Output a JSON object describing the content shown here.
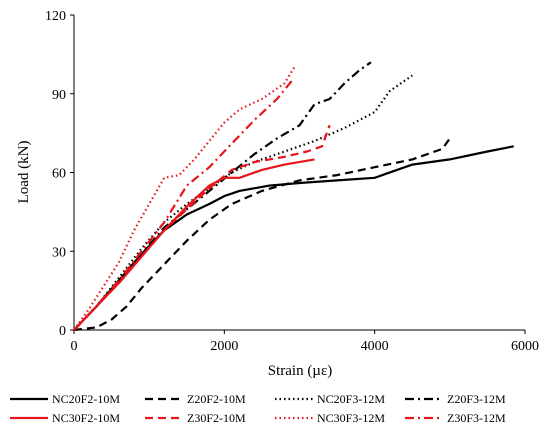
{
  "chart_data": {
    "type": "line",
    "title": "",
    "xlabel": "Strain (µε)",
    "ylabel": "Load (kN)",
    "xlim": [
      0,
      6000
    ],
    "ylim": [
      0,
      120
    ],
    "x_ticks": [
      0,
      2000,
      4000,
      6000
    ],
    "y_ticks": [
      0,
      30,
      60,
      90,
      120
    ],
    "grid": false,
    "legend_position": "bottom",
    "series": [
      {
        "name": "NC20F2-10M",
        "color": "#000000",
        "dash": "solid",
        "x": [
          0,
          300,
          600,
          900,
          1200,
          1500,
          1800,
          2000,
          2200,
          2600,
          3000,
          3500,
          4000,
          4500,
          5000,
          5500,
          5850
        ],
        "y": [
          0,
          9,
          19,
          29,
          38,
          44,
          48,
          51,
          53,
          55,
          56,
          57,
          58,
          63,
          65,
          68,
          70
        ]
      },
      {
        "name": "Z20F2-10M",
        "color": "#000000",
        "dash": "dashed",
        "x": [
          0,
          300,
          500,
          700,
          900,
          1200,
          1500,
          1800,
          2100,
          2500,
          3000,
          3500,
          4000,
          4500,
          4900,
          5000
        ],
        "y": [
          0,
          1,
          4,
          9,
          16,
          25,
          34,
          42,
          48,
          53,
          57,
          59,
          62,
          65,
          69,
          73
        ]
      },
      {
        "name": "NC20F3-12M",
        "color": "#000000",
        "dash": "dotted",
        "x": [
          0,
          300,
          600,
          900,
          1200,
          1500,
          1800,
          2100,
          2400,
          2800,
          3200,
          3600,
          4000,
          4200,
          4500
        ],
        "y": [
          0,
          9,
          20,
          31,
          41,
          48,
          54,
          60,
          64,
          68,
          72,
          77,
          83,
          91,
          97
        ]
      },
      {
        "name": "Z20F3-12M",
        "color": "#000000",
        "dash": "dashdot",
        "x": [
          0,
          300,
          600,
          900,
          1200,
          1500,
          1800,
          2100,
          2400,
          2700,
          3000,
          3200,
          3400,
          3600,
          3800,
          3950
        ],
        "y": [
          0,
          9,
          19,
          29,
          39,
          46,
          53,
          60,
          67,
          73,
          78,
          86,
          88,
          94,
          99,
          102
        ]
      },
      {
        "name": "NC30F2-10M",
        "color": "#e8141b",
        "dash": "solid",
        "x": [
          0,
          300,
          600,
          900,
          1200,
          1500,
          1800,
          2000,
          2200,
          2500,
          2800,
          3200
        ],
        "y": [
          0,
          9,
          18,
          28,
          38,
          47,
          55,
          58,
          58,
          61,
          63,
          65
        ]
      },
      {
        "name": "Z30F2-10M",
        "color": "#e8141b",
        "dash": "dashed",
        "x": [
          0,
          300,
          600,
          900,
          1200,
          1500,
          1800,
          2100,
          2400,
          2800,
          3100,
          3300,
          3400
        ],
        "y": [
          0,
          9,
          18,
          28,
          38,
          46,
          54,
          61,
          64,
          66,
          68,
          70,
          78
        ]
      },
      {
        "name": "NC30F3-12M",
        "color": "#e8141b",
        "dash": "dotted",
        "x": [
          0,
          200,
          400,
          600,
          800,
          1000,
          1200,
          1400,
          1600,
          1800,
          2000,
          2200,
          2500,
          2800,
          2950
        ],
        "y": [
          0,
          8,
          17,
          26,
          38,
          48,
          58,
          59,
          65,
          72,
          79,
          84,
          88,
          94,
          101
        ]
      },
      {
        "name": "Z30F3-12M",
        "color": "#e8141b",
        "dash": "dashdot",
        "x": [
          0,
          300,
          600,
          900,
          1200,
          1500,
          1800,
          2100,
          2400,
          2700,
          2900
        ],
        "y": [
          0,
          9,
          19,
          30,
          41,
          55,
          62,
          71,
          80,
          88,
          95
        ]
      }
    ]
  }
}
